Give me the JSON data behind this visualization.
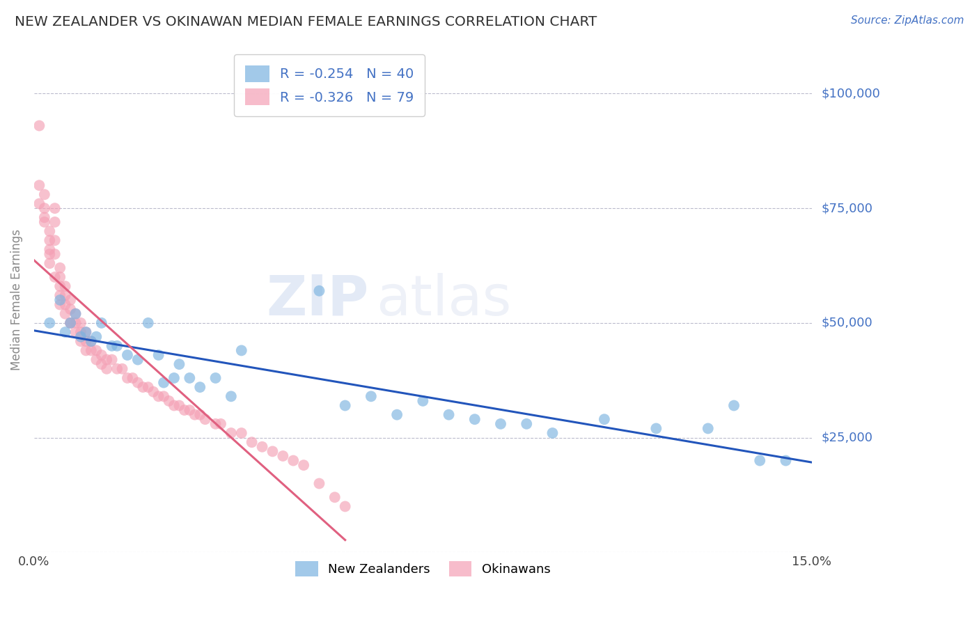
{
  "title": "NEW ZEALANDER VS OKINAWAN MEDIAN FEMALE EARNINGS CORRELATION CHART",
  "source": "Source: ZipAtlas.com",
  "ylabel": "Median Female Earnings",
  "xlim": [
    0.0,
    0.15
  ],
  "ylim": [
    0,
    110000
  ],
  "yticks": [
    0,
    25000,
    50000,
    75000,
    100000
  ],
  "xticks": [
    0.0,
    0.15
  ],
  "xtick_labels": [
    "0.0%",
    "15.0%"
  ],
  "nz_color": "#7bb3e0",
  "ok_color": "#f4a0b5",
  "nz_line_color": "#2255bb",
  "ok_line_color": "#e06080",
  "background_color": "#ffffff",
  "grid_color": "#bbbbcc",
  "title_color": "#333333",
  "axis_label_color": "#888888",
  "ytick_label_color": "#4472c4",
  "legend_text_color": "#4472c4",
  "watermark_zip_color": "#4472c4",
  "watermark_atlas_color": "#aabbdd",
  "nz_x": [
    0.003,
    0.005,
    0.006,
    0.007,
    0.008,
    0.009,
    0.01,
    0.011,
    0.012,
    0.013,
    0.015,
    0.016,
    0.018,
    0.02,
    0.022,
    0.024,
    0.025,
    0.027,
    0.028,
    0.03,
    0.032,
    0.035,
    0.038,
    0.04,
    0.055,
    0.06,
    0.065,
    0.07,
    0.075,
    0.08,
    0.085,
    0.09,
    0.095,
    0.1,
    0.11,
    0.12,
    0.13,
    0.135,
    0.14,
    0.145
  ],
  "nz_y": [
    50000,
    55000,
    48000,
    50000,
    52000,
    47000,
    48000,
    46000,
    47000,
    50000,
    45000,
    45000,
    43000,
    42000,
    50000,
    43000,
    37000,
    38000,
    41000,
    38000,
    36000,
    38000,
    34000,
    44000,
    57000,
    32000,
    34000,
    30000,
    33000,
    30000,
    29000,
    28000,
    28000,
    26000,
    29000,
    27000,
    27000,
    32000,
    20000,
    20000
  ],
  "ok_x": [
    0.001,
    0.001,
    0.001,
    0.002,
    0.002,
    0.002,
    0.002,
    0.003,
    0.003,
    0.003,
    0.003,
    0.003,
    0.004,
    0.004,
    0.004,
    0.004,
    0.004,
    0.005,
    0.005,
    0.005,
    0.005,
    0.005,
    0.006,
    0.006,
    0.006,
    0.006,
    0.007,
    0.007,
    0.007,
    0.007,
    0.008,
    0.008,
    0.008,
    0.009,
    0.009,
    0.009,
    0.01,
    0.01,
    0.01,
    0.011,
    0.011,
    0.012,
    0.012,
    0.013,
    0.013,
    0.014,
    0.014,
    0.015,
    0.016,
    0.017,
    0.018,
    0.019,
    0.02,
    0.021,
    0.022,
    0.023,
    0.024,
    0.025,
    0.026,
    0.027,
    0.028,
    0.029,
    0.03,
    0.031,
    0.032,
    0.033,
    0.035,
    0.036,
    0.038,
    0.04,
    0.042,
    0.044,
    0.046,
    0.048,
    0.05,
    0.052,
    0.055,
    0.058,
    0.06
  ],
  "ok_y": [
    93000,
    80000,
    76000,
    78000,
    75000,
    73000,
    72000,
    70000,
    68000,
    66000,
    65000,
    63000,
    75000,
    72000,
    68000,
    65000,
    60000,
    62000,
    60000,
    58000,
    56000,
    54000,
    58000,
    56000,
    54000,
    52000,
    55000,
    53000,
    50000,
    50000,
    52000,
    50000,
    48000,
    50000,
    48000,
    46000,
    48000,
    46000,
    44000,
    46000,
    44000,
    44000,
    42000,
    43000,
    41000,
    42000,
    40000,
    42000,
    40000,
    40000,
    38000,
    38000,
    37000,
    36000,
    36000,
    35000,
    34000,
    34000,
    33000,
    32000,
    32000,
    31000,
    31000,
    30000,
    30000,
    29000,
    28000,
    28000,
    26000,
    26000,
    24000,
    23000,
    22000,
    21000,
    20000,
    19000,
    15000,
    12000,
    10000
  ]
}
